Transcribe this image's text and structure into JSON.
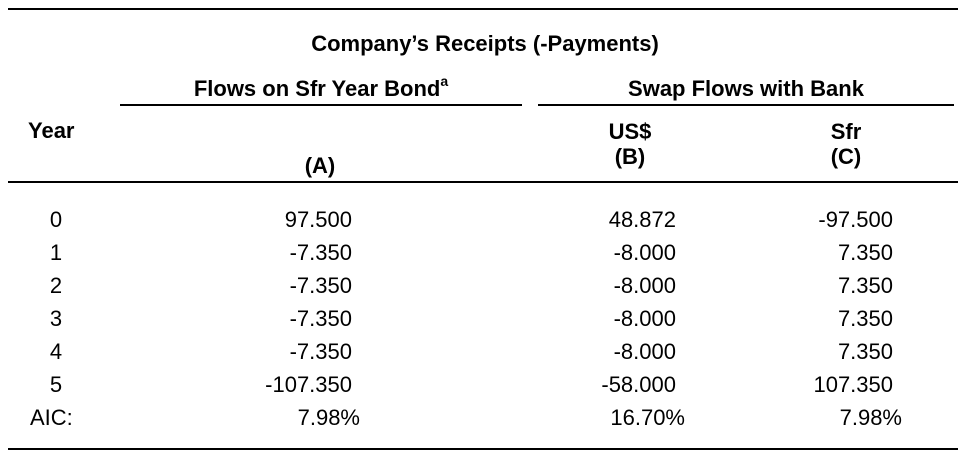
{
  "header": {
    "group_title": "Company’s Receipts (-Payments)",
    "col_a_title": "Flows on Sfr Year Bond",
    "col_a_footnote": "a",
    "swap_title": "Swap Flows with Bank",
    "year_label": "Year",
    "col_a_letter": "(A)",
    "col_b_currency": "US$",
    "col_b_letter": "(B)",
    "col_c_currency": "Sfr",
    "col_c_letter": "(C)"
  },
  "rows": [
    {
      "year": "0",
      "a": "97.500",
      "b": "48.872",
      "c": "-97.500"
    },
    {
      "year": "1",
      "a": "-7.350",
      "b": "-8.000",
      "c": "7.350"
    },
    {
      "year": "2",
      "a": "-7.350",
      "b": "-8.000",
      "c": "7.350"
    },
    {
      "year": "3",
      "a": "-7.350",
      "b": "-8.000",
      "c": "7.350"
    },
    {
      "year": "4",
      "a": "-7.350",
      "b": "-8.000",
      "c": "7.350"
    },
    {
      "year": "5",
      "a": "-107.350",
      "b": "-58.000",
      "c": "107.350"
    }
  ],
  "aic": {
    "label": "AIC:",
    "a": "7.98%",
    "b": "16.70%",
    "c": "7.98%"
  }
}
